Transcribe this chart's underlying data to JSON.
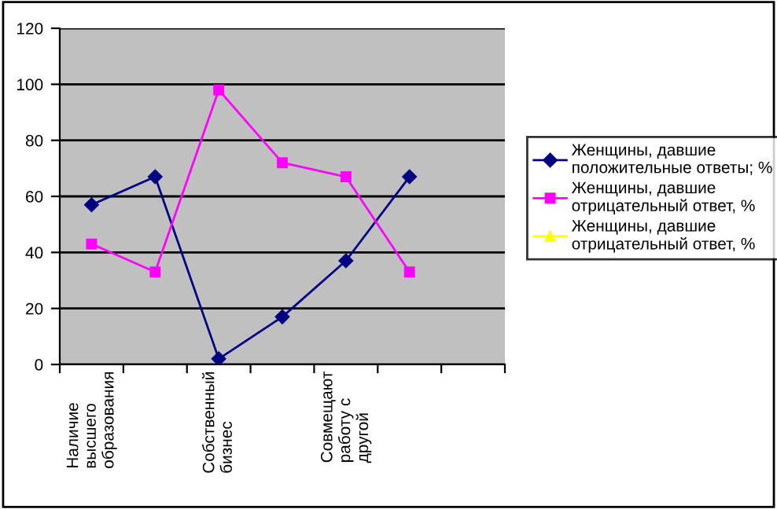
{
  "chart_data": {
    "type": "line",
    "categories": [
      "Наличие\nвысшего\nобразования",
      null,
      "Собственный\nбизнес",
      null,
      "Совмещают\nработу с\nдругой",
      null,
      null
    ],
    "series": [
      {
        "name": "Женщины, давшие\nположительные ответы; %",
        "color": "#000080",
        "marker": "diamond",
        "values": [
          57,
          67,
          2,
          17,
          37,
          67,
          null
        ]
      },
      {
        "name": "Женщины, давшие\nотрицательный ответ, %",
        "color": "#ff00ff",
        "marker": "square",
        "values": [
          43,
          33,
          98,
          72,
          67,
          33,
          null
        ]
      },
      {
        "name": "Женщины, давшие\nотрицательный ответ, %",
        "color": "#ffff00",
        "marker": "triangle",
        "values": [
          null,
          null,
          null,
          null,
          null,
          null,
          null
        ]
      }
    ],
    "ylim": [
      0,
      120
    ],
    "yticks": [
      0,
      20,
      40,
      60,
      80,
      100,
      120
    ],
    "grid": "y",
    "legend": "right"
  }
}
